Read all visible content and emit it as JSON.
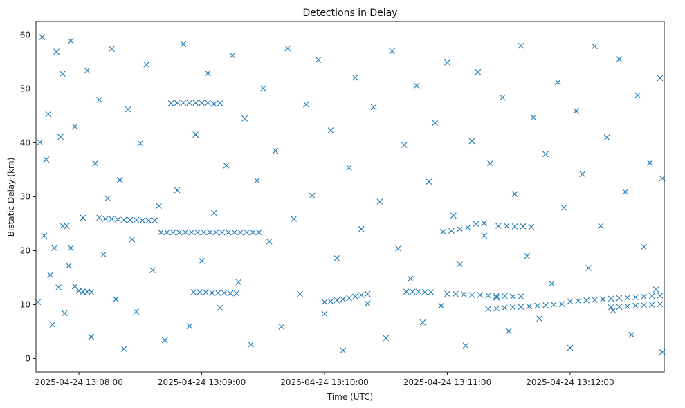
{
  "chart_data": {
    "type": "scatter",
    "title": "Detections in Delay",
    "xlabel": "Time (UTC)",
    "ylabel": "Bistatic Delay (km)",
    "x_tick_labels": [
      "2025-04-24 13:08:00",
      "2025-04-24 13:09:00",
      "2025-04-24 13:10:00",
      "2025-04-24 13:11:00",
      "2025-04-24 13:12:00"
    ],
    "y_tick_labels": [
      "0",
      "10",
      "20",
      "30",
      "40",
      "50",
      "60"
    ],
    "y_ticks": [
      0,
      10,
      20,
      30,
      40,
      50,
      60
    ],
    "xlim": [
      "2025-04-24 13:07:39",
      "2025-04-24 13:12:46"
    ],
    "ylim": [
      -2.5,
      62.5
    ],
    "marker": "x",
    "color": "#1f77b4",
    "grid": false,
    "series": [
      {
        "x": [
          "2025-04-24 13:07:40",
          "2025-04-24 13:07:41",
          "2025-04-24 13:07:42",
          "2025-04-24 13:07:43",
          "2025-04-24 13:07:44",
          "2025-04-24 13:07:45",
          "2025-04-24 13:07:46",
          "2025-04-24 13:07:47",
          "2025-04-24 13:07:48",
          "2025-04-24 13:07:49",
          "2025-04-24 13:07:50",
          "2025-04-24 13:07:51",
          "2025-04-24 13:07:52",
          "2025-04-24 13:07:53",
          "2025-04-24 13:07:55",
          "2025-04-24 13:07:56",
          "2025-04-24 13:07:58",
          "2025-04-24 13:08:00",
          "2025-04-24 13:08:02",
          "2025-04-24 13:08:04",
          "2025-04-24 13:08:06",
          "2025-04-24 13:08:08",
          "2025-04-24 13:08:10",
          "2025-04-24 13:08:12",
          "2025-04-24 13:08:14",
          "2025-04-24 13:08:16",
          "2025-04-24 13:08:18",
          "2025-04-24 13:08:20",
          "2025-04-24 13:08:22",
          "2025-04-24 13:08:24",
          "2025-04-24 13:08:26",
          "2025-04-24 13:08:28",
          "2025-04-24 13:08:30",
          "2025-04-24 13:08:33",
          "2025-04-24 13:08:36",
          "2025-04-24 13:08:39",
          "2025-04-24 13:08:42",
          "2025-04-24 13:08:45",
          "2025-04-24 13:08:48",
          "2025-04-24 13:08:51",
          "2025-04-24 13:08:54",
          "2025-04-24 13:08:57",
          "2025-04-24 13:09:00",
          "2025-04-24 13:09:03",
          "2025-04-24 13:09:06",
          "2025-04-24 13:09:09",
          "2025-04-24 13:09:12",
          "2025-04-24 13:09:15",
          "2025-04-24 13:09:18",
          "2025-04-24 13:09:21",
          "2025-04-24 13:09:24",
          "2025-04-24 13:09:27",
          "2025-04-24 13:09:30",
          "2025-04-24 13:09:33",
          "2025-04-24 13:09:36",
          "2025-04-24 13:09:39",
          "2025-04-24 13:09:42",
          "2025-04-24 13:09:45",
          "2025-04-24 13:09:48",
          "2025-04-24 13:09:51",
          "2025-04-24 13:09:54",
          "2025-04-24 13:09:57",
          "2025-04-24 13:10:00",
          "2025-04-24 13:10:03",
          "2025-04-24 13:10:06",
          "2025-04-24 13:10:09",
          "2025-04-24 13:10:12",
          "2025-04-24 13:10:15",
          "2025-04-24 13:10:18",
          "2025-04-24 13:10:21",
          "2025-04-24 13:10:24",
          "2025-04-24 13:10:27",
          "2025-04-24 13:10:30",
          "2025-04-24 13:10:33",
          "2025-04-24 13:10:36",
          "2025-04-24 13:10:39",
          "2025-04-24 13:10:42",
          "2025-04-24 13:10:45",
          "2025-04-24 13:10:48",
          "2025-04-24 13:10:51",
          "2025-04-24 13:10:54",
          "2025-04-24 13:10:57",
          "2025-04-24 13:11:00",
          "2025-04-24 13:11:03",
          "2025-04-24 13:11:06",
          "2025-04-24 13:11:09",
          "2025-04-24 13:11:12",
          "2025-04-24 13:11:15",
          "2025-04-24 13:11:18",
          "2025-04-24 13:11:21",
          "2025-04-24 13:11:24",
          "2025-04-24 13:11:27",
          "2025-04-24 13:11:30",
          "2025-04-24 13:11:33",
          "2025-04-24 13:11:36",
          "2025-04-24 13:11:39",
          "2025-04-24 13:11:42",
          "2025-04-24 13:11:45",
          "2025-04-24 13:11:48",
          "2025-04-24 13:11:51",
          "2025-04-24 13:11:54",
          "2025-04-24 13:11:57",
          "2025-04-24 13:12:00",
          "2025-04-24 13:12:03",
          "2025-04-24 13:12:06",
          "2025-04-24 13:12:09",
          "2025-04-24 13:12:12",
          "2025-04-24 13:12:15",
          "2025-04-24 13:12:18",
          "2025-04-24 13:12:21",
          "2025-04-24 13:12:24",
          "2025-04-24 13:12:27",
          "2025-04-24 13:12:30",
          "2025-04-24 13:12:33",
          "2025-04-24 13:12:36",
          "2025-04-24 13:12:39",
          "2025-04-24 13:12:42",
          "2025-04-24 13:12:44",
          "2025-04-24 13:12:45",
          "2025-04-24 13:12:45",
          "2025-04-24 13:07:52",
          "2025-04-24 13:07:54",
          "2025-04-24 13:07:56",
          "2025-04-24 13:07:58",
          "2025-04-24 13:08:00",
          "2025-04-24 13:08:02",
          "2025-04-24 13:08:04",
          "2025-04-24 13:08:06",
          "2025-04-24 13:08:10",
          "2025-04-24 13:08:13",
          "2025-04-24 13:08:16",
          "2025-04-24 13:08:19",
          "2025-04-24 13:08:22",
          "2025-04-24 13:08:25",
          "2025-04-24 13:08:28",
          "2025-04-24 13:08:31",
          "2025-04-24 13:08:34",
          "2025-04-24 13:08:37",
          "2025-04-24 13:08:40",
          "2025-04-24 13:08:43",
          "2025-04-24 13:08:46",
          "2025-04-24 13:08:49",
          "2025-04-24 13:08:52",
          "2025-04-24 13:08:55",
          "2025-04-24 13:08:58",
          "2025-04-24 13:09:01",
          "2025-04-24 13:09:04",
          "2025-04-24 13:09:07",
          "2025-04-24 13:09:10",
          "2025-04-24 13:09:13",
          "2025-04-24 13:09:16",
          "2025-04-24 13:09:19",
          "2025-04-24 13:09:22",
          "2025-04-24 13:09:25",
          "2025-04-24 13:09:28",
          "2025-04-24 13:08:48",
          "2025-04-24 13:08:51",
          "2025-04-24 13:08:54",
          "2025-04-24 13:08:57",
          "2025-04-24 13:09:00",
          "2025-04-24 13:09:03",
          "2025-04-24 13:09:06",
          "2025-04-24 13:09:09",
          "2025-04-24 13:08:56",
          "2025-04-24 13:08:59",
          "2025-04-24 13:09:02",
          "2025-04-24 13:09:05",
          "2025-04-24 13:09:08",
          "2025-04-24 13:09:11",
          "2025-04-24 13:09:14",
          "2025-04-24 13:09:17",
          "2025-04-24 13:10:00",
          "2025-04-24 13:10:03",
          "2025-04-24 13:10:06",
          "2025-04-24 13:10:09",
          "2025-04-24 13:10:12",
          "2025-04-24 13:10:15",
          "2025-04-24 13:10:18",
          "2025-04-24 13:10:21",
          "2025-04-24 13:10:40",
          "2025-04-24 13:10:43",
          "2025-04-24 13:10:46",
          "2025-04-24 13:10:49",
          "2025-04-24 13:10:52",
          "2025-04-24 13:11:00",
          "2025-04-24 13:11:04",
          "2025-04-24 13:11:08",
          "2025-04-24 13:11:12",
          "2025-04-24 13:11:16",
          "2025-04-24 13:11:20",
          "2025-04-24 13:11:24",
          "2025-04-24 13:11:28",
          "2025-04-24 13:11:32",
          "2025-04-24 13:11:36",
          "2025-04-24 13:11:20",
          "2025-04-24 13:11:24",
          "2025-04-24 13:11:28",
          "2025-04-24 13:11:32",
          "2025-04-24 13:11:36",
          "2025-04-24 13:11:40",
          "2025-04-24 13:11:44",
          "2025-04-24 13:11:48",
          "2025-04-24 13:11:52",
          "2025-04-24 13:11:56",
          "2025-04-24 13:12:00",
          "2025-04-24 13:12:04",
          "2025-04-24 13:12:08",
          "2025-04-24 13:12:12",
          "2025-04-24 13:12:16",
          "2025-04-24 13:12:20",
          "2025-04-24 13:12:24",
          "2025-04-24 13:12:28",
          "2025-04-24 13:12:32",
          "2025-04-24 13:12:36",
          "2025-04-24 13:12:40",
          "2025-04-24 13:12:44",
          "2025-04-24 13:12:20",
          "2025-04-24 13:12:24",
          "2025-04-24 13:12:28",
          "2025-04-24 13:12:32",
          "2025-04-24 13:12:36",
          "2025-04-24 13:12:40",
          "2025-04-24 13:12:44",
          "2025-04-24 13:10:58",
          "2025-04-24 13:11:02",
          "2025-04-24 13:11:06",
          "2025-04-24 13:11:10",
          "2025-04-24 13:11:14",
          "2025-04-24 13:11:18",
          "2025-04-24 13:11:25",
          "2025-04-24 13:11:29",
          "2025-04-24 13:11:33",
          "2025-04-24 13:11:37",
          "2025-04-24 13:11:41"
        ],
        "y": [
          10.5,
          40.1,
          59.6,
          22.8,
          36.9,
          45.3,
          15.5,
          6.3,
          20.5,
          56.9,
          13.2,
          41.1,
          52.8,
          8.4,
          17.2,
          58.9,
          43.0,
          12.6,
          26.1,
          53.4,
          4.0,
          36.2,
          48.0,
          19.3,
          29.7,
          57.4,
          11.0,
          33.1,
          1.8,
          46.2,
          22.1,
          8.7,
          39.9,
          54.5,
          16.4,
          28.3,
          3.4,
          47.3,
          31.2,
          58.3,
          6.0,
          41.5,
          18.1,
          52.9,
          27.0,
          9.4,
          35.8,
          56.2,
          14.2,
          44.5,
          2.6,
          33.0,
          50.1,
          21.7,
          38.5,
          5.9,
          57.5,
          25.9,
          12.0,
          47.1,
          30.2,
          55.4,
          8.3,
          42.3,
          18.6,
          1.5,
          35.4,
          52.1,
          24.0,
          10.2,
          46.6,
          29.1,
          3.8,
          57.0,
          20.4,
          39.6,
          14.8,
          50.6,
          6.7,
          32.8,
          43.7,
          9.8,
          54.9,
          26.5,
          17.5,
          2.4,
          40.3,
          53.1,
          22.8,
          36.2,
          11.3,
          48.4,
          5.1,
          30.5,
          58.0,
          19.0,
          44.7,
          7.4,
          37.9,
          13.9,
          51.2,
          28.0,
          2.0,
          45.9,
          34.2,
          16.8,
          57.9,
          24.6,
          41.0,
          8.9,
          55.5,
          30.9,
          4.4,
          48.8,
          20.7,
          36.3,
          12.8,
          52.0,
          1.2,
          33.4,
          24.6,
          24.6,
          20.5,
          13.4,
          12.6,
          12.4,
          12.4,
          12.3,
          26.1,
          25.9,
          25.9,
          25.8,
          25.7,
          25.7,
          25.7,
          25.6,
          25.6,
          25.6,
          23.4,
          23.4,
          23.4,
          23.4,
          23.4,
          23.4,
          23.4,
          23.4,
          23.4,
          23.4,
          23.4,
          23.4,
          23.4,
          23.4,
          23.4,
          23.4,
          23.4,
          47.4,
          47.4,
          47.4,
          47.4,
          47.4,
          47.4,
          47.2,
          47.3,
          12.3,
          12.3,
          12.3,
          12.2,
          12.2,
          12.2,
          12.1,
          12.1,
          10.5,
          10.6,
          10.8,
          11.0,
          11.2,
          11.5,
          11.8,
          12.0,
          12.4,
          12.4,
          12.4,
          12.3,
          12.3,
          12.0,
          12.0,
          11.9,
          11.8,
          11.8,
          11.7,
          11.6,
          11.6,
          11.5,
          11.5,
          9.2,
          9.3,
          9.4,
          9.5,
          9.6,
          9.7,
          9.8,
          9.9,
          10.0,
          10.1,
          10.6,
          10.7,
          10.8,
          10.9,
          11.0,
          11.1,
          11.2,
          11.3,
          11.4,
          11.5,
          11.6,
          11.7,
          9.5,
          9.6,
          9.7,
          9.8,
          9.9,
          10.0,
          10.1,
          23.5,
          23.7,
          24.0,
          24.3,
          25.0,
          25.1,
          24.6,
          24.6,
          24.5,
          24.5,
          24.4
        ]
      }
    ]
  }
}
